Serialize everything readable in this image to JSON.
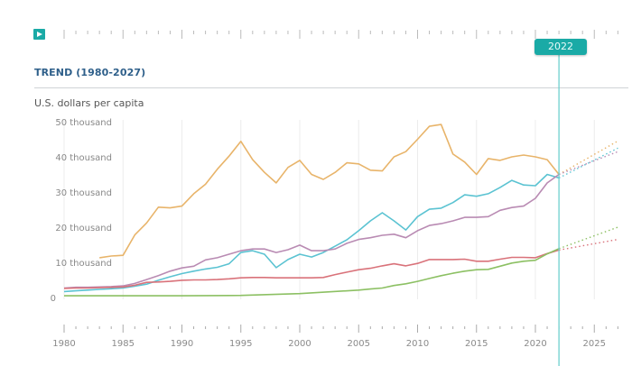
{
  "timeline": {
    "play_label": "play",
    "selected_year": "2022"
  },
  "section": {
    "title": "TREND (1980-2027)",
    "unit": "U.S. dollars per capita"
  },
  "chart_data": {
    "type": "line",
    "title": "TREND (1980-2027)",
    "ylabel": "U.S. dollars per capita",
    "xlabel": "",
    "xlim": [
      1980,
      2027
    ],
    "ylim": [
      0,
      50000
    ],
    "grid": true,
    "yticks": [
      {
        "value": 0,
        "label": "0"
      },
      {
        "value": 10000,
        "label": "10 thousand"
      },
      {
        "value": 20000,
        "label": "20 thousand"
      },
      {
        "value": 30000,
        "label": "30 thousand"
      },
      {
        "value": 40000,
        "label": "40 thousand"
      },
      {
        "value": 50000,
        "label": "50 thousand"
      }
    ],
    "xticks": [
      1980,
      1985,
      1990,
      1995,
      2000,
      2005,
      2010,
      2015,
      2020,
      2025
    ],
    "marker_year": 2022,
    "series": [
      {
        "name": "series-orange",
        "color": "#e8b46a",
        "x": [
          1983,
          1984,
          1985,
          1986,
          1987,
          1988,
          1989,
          1990,
          1991,
          1992,
          1993,
          1994,
          1995,
          1996,
          1997,
          1998,
          1999,
          2000,
          2001,
          2002,
          2003,
          2004,
          2005,
          2006,
          2007,
          2008,
          2009,
          2010,
          2011,
          2012,
          2013,
          2014,
          2015,
          2016,
          2017,
          2018,
          2019,
          2020,
          2021,
          2022
        ],
        "values": [
          11300,
          11800,
          12000,
          17800,
          21200,
          25700,
          25500,
          26000,
          29500,
          32200,
          36500,
          40200,
          44400,
          39200,
          35600,
          32600,
          37000,
          39000,
          35000,
          33600,
          35600,
          38300,
          38000,
          36200,
          36000,
          40000,
          41500,
          45000,
          48700,
          49200,
          40800,
          38500,
          35000,
          39500,
          39000,
          40000,
          40500,
          40000,
          39200,
          35000
        ],
        "forecast_x": [
          2022,
          2027
        ],
        "forecast_values": [
          35000,
          44500
        ]
      },
      {
        "name": "series-teal",
        "color": "#5bc3d2",
        "x": [
          1980,
          1981,
          1982,
          1983,
          1984,
          1985,
          1986,
          1987,
          1988,
          1989,
          1990,
          1991,
          1992,
          1993,
          1994,
          1995,
          1996,
          1997,
          1998,
          1999,
          2000,
          2001,
          2002,
          2003,
          2004,
          2005,
          2006,
          2007,
          2008,
          2009,
          2010,
          2011,
          2012,
          2013,
          2014,
          2015,
          2016,
          2017,
          2018,
          2019,
          2020,
          2021,
          2022
        ],
        "values": [
          1700,
          1900,
          2100,
          2300,
          2500,
          2700,
          3200,
          3800,
          4900,
          5900,
          6800,
          7500,
          8100,
          8600,
          9600,
          12800,
          13300,
          12300,
          8500,
          10800,
          12300,
          11500,
          12800,
          14600,
          16400,
          19000,
          21800,
          24100,
          21800,
          19200,
          23000,
          25100,
          25400,
          27000,
          29200,
          28800,
          29500,
          31300,
          33300,
          32000,
          31800,
          35000,
          34000
        ],
        "forecast_x": [
          2022,
          2027
        ],
        "forecast_values": [
          34000,
          42500
        ]
      },
      {
        "name": "series-purple",
        "color": "#b98bb3",
        "x": [
          1980,
          1981,
          1982,
          1983,
          1984,
          1985,
          1986,
          1987,
          1988,
          1989,
          1990,
          1991,
          1992,
          1993,
          1994,
          1995,
          1996,
          1997,
          1998,
          1999,
          2000,
          2001,
          2002,
          2003,
          2004,
          2005,
          2006,
          2007,
          2008,
          2009,
          2010,
          2011,
          2012,
          2013,
          2014,
          2015,
          2016,
          2017,
          2018,
          2019,
          2020,
          2021,
          2022
        ],
        "values": [
          2700,
          2900,
          2900,
          3000,
          3100,
          3300,
          4000,
          5100,
          6200,
          7500,
          8400,
          8900,
          10700,
          11300,
          12300,
          13300,
          13800,
          13800,
          12800,
          13600,
          14900,
          13300,
          13300,
          13800,
          15400,
          16500,
          17000,
          17700,
          18000,
          17000,
          19000,
          20500,
          21000,
          21800,
          22800,
          22800,
          23000,
          24800,
          25600,
          26000,
          28200,
          32600,
          35000
        ],
        "forecast_x": [
          2022,
          2027
        ],
        "forecast_values": [
          35000,
          41500
        ]
      },
      {
        "name": "series-red",
        "color": "#d9727a",
        "x": [
          1980,
          1981,
          1982,
          1983,
          1984,
          1985,
          1986,
          1987,
          1988,
          1989,
          1990,
          1991,
          1992,
          1993,
          1994,
          1995,
          1996,
          1997,
          1998,
          1999,
          2000,
          2001,
          2002,
          2003,
          2004,
          2005,
          2006,
          2007,
          2008,
          2009,
          2010,
          2011,
          2012,
          2013,
          2014,
          2015,
          2016,
          2017,
          2018,
          2019,
          2020,
          2021,
          2022
        ],
        "values": [
          2600,
          2700,
          2700,
          2800,
          2900,
          3000,
          3500,
          4300,
          4400,
          4600,
          4900,
          5000,
          5000,
          5100,
          5300,
          5600,
          5700,
          5700,
          5600,
          5600,
          5600,
          5600,
          5700,
          6500,
          7200,
          7900,
          8300,
          9000,
          9600,
          9000,
          9700,
          10800,
          10800,
          10800,
          10900,
          10300,
          10300,
          10900,
          11400,
          11400,
          11300,
          12500,
          13500
        ],
        "forecast_x": [
          2022,
          2027
        ],
        "forecast_values": [
          13500,
          16500
        ]
      },
      {
        "name": "series-green",
        "color": "#8cc063",
        "x": [
          1980,
          1985,
          1990,
          1995,
          2000,
          2005,
          2006,
          2007,
          2008,
          2009,
          2010,
          2011,
          2012,
          2013,
          2014,
          2015,
          2016,
          2017,
          2018,
          2019,
          2020,
          2021,
          2022
        ],
        "values": [
          500,
          500,
          500,
          600,
          1100,
          2100,
          2400,
          2700,
          3400,
          3900,
          4600,
          5400,
          6200,
          6900,
          7500,
          7900,
          8000,
          8900,
          9800,
          10300,
          10600,
          12400,
          13900
        ],
        "forecast_x": [
          2022,
          2027
        ],
        "forecast_values": [
          13900,
          20000
        ]
      }
    ]
  }
}
